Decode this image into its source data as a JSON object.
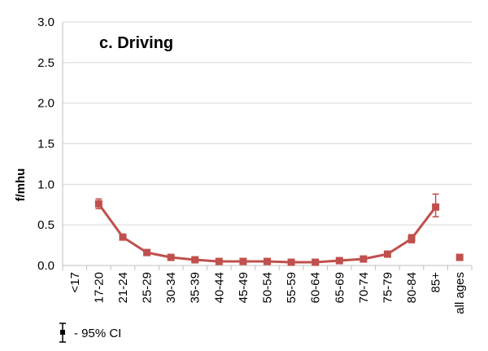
{
  "chart_data": {
    "type": "line",
    "title": "c. Driving",
    "xlabel": "",
    "ylabel": "f/mhu",
    "ylim": [
      0,
      3.0
    ],
    "yticks": [
      "0.0",
      "0.5",
      "1.0",
      "1.5",
      "2.0",
      "2.5",
      "3.0"
    ],
    "grid": true,
    "categories": [
      "<17",
      "17-20",
      "21-24",
      "25-29",
      "30-34",
      "35-39",
      "40-44",
      "45-49",
      "50-54",
      "55-59",
      "60-64",
      "65-69",
      "70-74",
      "75-79",
      "80-84",
      "85+",
      "all ages"
    ],
    "series": [
      {
        "color": "#c0504d",
        "connected_range": [
          1,
          15
        ],
        "values": [
          null,
          0.76,
          0.35,
          0.16,
          0.1,
          0.07,
          0.05,
          0.05,
          0.05,
          0.04,
          0.04,
          0.06,
          0.08,
          0.14,
          0.33,
          0.72,
          0.1
        ],
        "ci_low": [
          null,
          0.7,
          0.33,
          0.15,
          0.09,
          0.06,
          0.04,
          0.04,
          0.04,
          0.03,
          0.03,
          0.05,
          0.07,
          0.13,
          0.28,
          0.6,
          0.09
        ],
        "ci_high": [
          null,
          0.82,
          0.37,
          0.17,
          0.11,
          0.08,
          0.06,
          0.06,
          0.06,
          0.05,
          0.05,
          0.07,
          0.09,
          0.15,
          0.38,
          0.88,
          0.11
        ]
      }
    ],
    "legend": {
      "label": "- 95% CI",
      "placement": "bottom-left"
    }
  }
}
